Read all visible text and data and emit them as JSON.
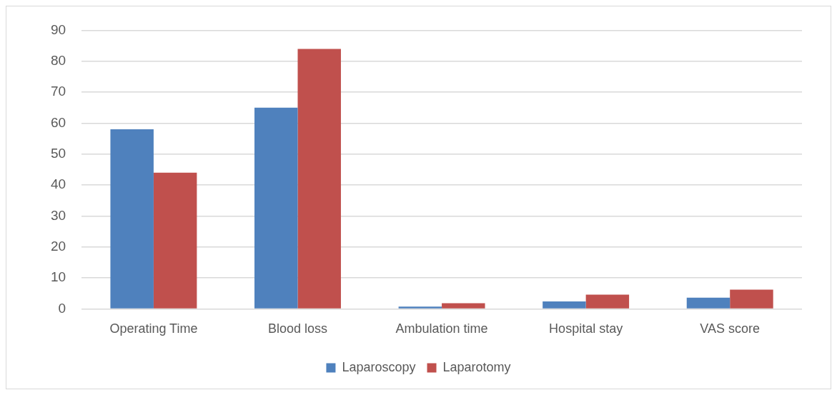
{
  "chart_data": {
    "type": "bar",
    "categories": [
      "Operating Time",
      "Blood loss",
      "Ambulation time",
      "Hospital stay",
      "VAS score"
    ],
    "series": [
      {
        "name": "Laparoscopy",
        "color": "#4f81bd",
        "values": [
          58,
          65,
          0.7,
          2.4,
          3.6
        ]
      },
      {
        "name": "Laparotomy",
        "color": "#c0504d",
        "values": [
          44,
          84,
          1.8,
          4.6,
          6.2
        ]
      }
    ],
    "ylim": [
      0,
      90
    ],
    "yticks": [
      0,
      10,
      20,
      30,
      40,
      50,
      60,
      70,
      80,
      90
    ],
    "grid": "y",
    "legend": "bottom"
  }
}
